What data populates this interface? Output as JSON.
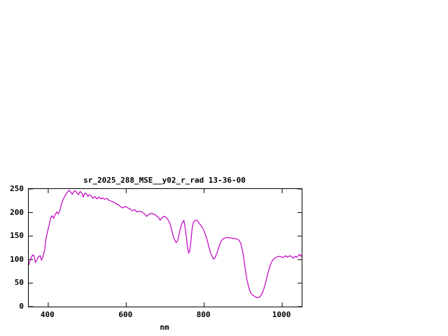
{
  "page": {
    "background_color": "#ffffff",
    "foreground_color": "#000000"
  },
  "chart_data": {
    "type": "line",
    "title": "sr_2025_288_MSE__y02_r_rad 13-36-00",
    "xlabel": "nm",
    "ylabel": "",
    "xlim": [
      350,
      1050
    ],
    "ylim": [
      0,
      250
    ],
    "xticks": [
      400,
      600,
      800,
      1000
    ],
    "yticks": [
      0,
      50,
      100,
      150,
      200,
      250
    ],
    "grid": false,
    "legend": "none",
    "line_color": "#c000c0",
    "points": [
      [
        350,
        88
      ],
      [
        353,
        97
      ],
      [
        356,
        103
      ],
      [
        360,
        110
      ],
      [
        364,
        108
      ],
      [
        367,
        94
      ],
      [
        371,
        99
      ],
      [
        375,
        106
      ],
      [
        379,
        108
      ],
      [
        383,
        99
      ],
      [
        387,
        107
      ],
      [
        391,
        120
      ],
      [
        394,
        143
      ],
      [
        398,
        158
      ],
      [
        402,
        172
      ],
      [
        406,
        187
      ],
      [
        410,
        193
      ],
      [
        414,
        188
      ],
      [
        418,
        196
      ],
      [
        422,
        201
      ],
      [
        426,
        197
      ],
      [
        430,
        205
      ],
      [
        434,
        218
      ],
      [
        438,
        227
      ],
      [
        442,
        234
      ],
      [
        446,
        240
      ],
      [
        450,
        244
      ],
      [
        454,
        247
      ],
      [
        458,
        243
      ],
      [
        462,
        239
      ],
      [
        466,
        245
      ],
      [
        470,
        246
      ],
      [
        474,
        241
      ],
      [
        478,
        238
      ],
      [
        482,
        245
      ],
      [
        486,
        241
      ],
      [
        490,
        233
      ],
      [
        494,
        241
      ],
      [
        498,
        240
      ],
      [
        502,
        234
      ],
      [
        506,
        238
      ],
      [
        510,
        236
      ],
      [
        515,
        230
      ],
      [
        520,
        234
      ],
      [
        525,
        229
      ],
      [
        530,
        233
      ],
      [
        535,
        229
      ],
      [
        540,
        231
      ],
      [
        545,
        228
      ],
      [
        550,
        230
      ],
      [
        556,
        226
      ],
      [
        562,
        224
      ],
      [
        568,
        222
      ],
      [
        574,
        219
      ],
      [
        580,
        216
      ],
      [
        586,
        212
      ],
      [
        592,
        210
      ],
      [
        598,
        213
      ],
      [
        604,
        210
      ],
      [
        610,
        207
      ],
      [
        616,
        204
      ],
      [
        622,
        206
      ],
      [
        628,
        201
      ],
      [
        634,
        203
      ],
      [
        640,
        201
      ],
      [
        646,
        198
      ],
      [
        652,
        192
      ],
      [
        658,
        196
      ],
      [
        664,
        198
      ],
      [
        670,
        197
      ],
      [
        676,
        194
      ],
      [
        682,
        190
      ],
      [
        687,
        184
      ],
      [
        692,
        189
      ],
      [
        697,
        192
      ],
      [
        702,
        190
      ],
      [
        707,
        185
      ],
      [
        712,
        177
      ],
      [
        716,
        165
      ],
      [
        720,
        152
      ],
      [
        724,
        142
      ],
      [
        728,
        136
      ],
      [
        732,
        140
      ],
      [
        736,
        155
      ],
      [
        740,
        170
      ],
      [
        744,
        179
      ],
      [
        748,
        183
      ],
      [
        751,
        168
      ],
      [
        754,
        150
      ],
      [
        757,
        128
      ],
      [
        760,
        114
      ],
      [
        763,
        118
      ],
      [
        766,
        140
      ],
      [
        769,
        165
      ],
      [
        772,
        178
      ],
      [
        776,
        183
      ],
      [
        780,
        184
      ],
      [
        784,
        181
      ],
      [
        788,
        176
      ],
      [
        792,
        172
      ],
      [
        796,
        167
      ],
      [
        800,
        160
      ],
      [
        804,
        151
      ],
      [
        808,
        140
      ],
      [
        812,
        127
      ],
      [
        816,
        115
      ],
      [
        820,
        107
      ],
      [
        824,
        101
      ],
      [
        828,
        104
      ],
      [
        832,
        112
      ],
      [
        836,
        122
      ],
      [
        840,
        132
      ],
      [
        844,
        140
      ],
      [
        848,
        144
      ],
      [
        853,
        146
      ],
      [
        858,
        147
      ],
      [
        864,
        146
      ],
      [
        870,
        146
      ],
      [
        876,
        145
      ],
      [
        882,
        144
      ],
      [
        888,
        142
      ],
      [
        893,
        136
      ],
      [
        897,
        124
      ],
      [
        901,
        105
      ],
      [
        905,
        82
      ],
      [
        909,
        60
      ],
      [
        913,
        45
      ],
      [
        917,
        34
      ],
      [
        921,
        27
      ],
      [
        925,
        24
      ],
      [
        929,
        22
      ],
      [
        933,
        20
      ],
      [
        937,
        19
      ],
      [
        941,
        20
      ],
      [
        945,
        23
      ],
      [
        949,
        29
      ],
      [
        953,
        38
      ],
      [
        957,
        50
      ],
      [
        961,
        63
      ],
      [
        965,
        76
      ],
      [
        969,
        87
      ],
      [
        973,
        95
      ],
      [
        977,
        100
      ],
      [
        981,
        103
      ],
      [
        985,
        105
      ],
      [
        989,
        106
      ],
      [
        993,
        107
      ],
      [
        997,
        106
      ],
      [
        1001,
        104
      ],
      [
        1005,
        106
      ],
      [
        1009,
        108
      ],
      [
        1013,
        105
      ],
      [
        1017,
        107
      ],
      [
        1021,
        108
      ],
      [
        1025,
        105
      ],
      [
        1029,
        103
      ],
      [
        1033,
        107
      ],
      [
        1037,
        105
      ],
      [
        1041,
        108
      ],
      [
        1045,
        111
      ],
      [
        1048,
        107
      ],
      [
        1050,
        109
      ]
    ]
  }
}
